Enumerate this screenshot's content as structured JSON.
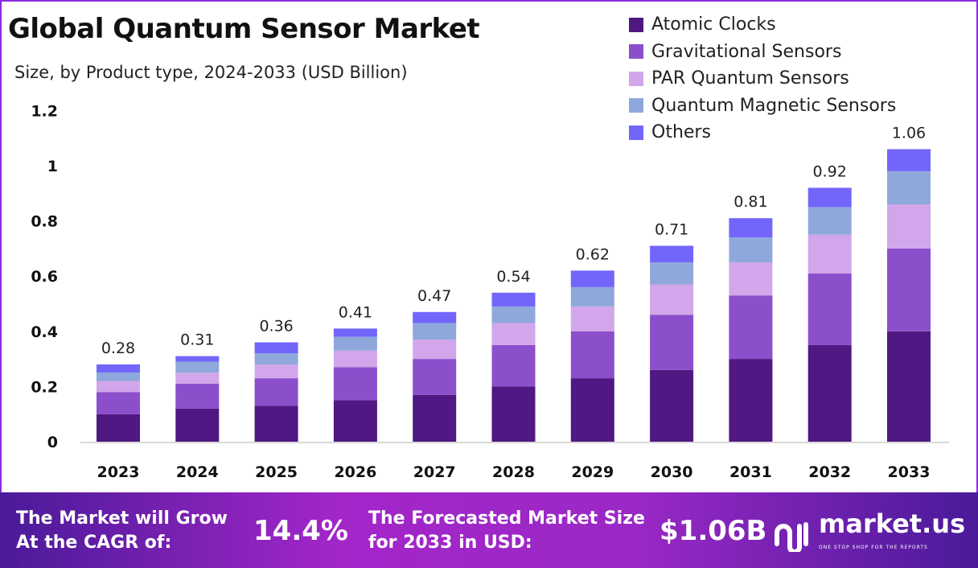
{
  "chart_data": {
    "type": "bar",
    "stacked": true,
    "title": "Global Quantum Sensor Market",
    "subtitle": "Size, by Product type, 2024-2033 (USD Billion)",
    "categories": [
      "2023",
      "2024",
      "2025",
      "2026",
      "2027",
      "2028",
      "2029",
      "2030",
      "2031",
      "2032",
      "2033"
    ],
    "totals": [
      "0.28",
      "0.31",
      "0.36",
      "0.41",
      "0.47",
      "0.54",
      "0.62",
      "0.71",
      "0.81",
      "0.92",
      "1.06"
    ],
    "series": [
      {
        "name": "Atomic Clocks",
        "color": "#4f1882",
        "values": [
          0.1,
          0.12,
          0.13,
          0.15,
          0.17,
          0.2,
          0.23,
          0.26,
          0.3,
          0.35,
          0.4
        ]
      },
      {
        "name": "Gravitational Sensors",
        "color": "#8c4fcc",
        "values": [
          0.08,
          0.09,
          0.1,
          0.12,
          0.13,
          0.15,
          0.17,
          0.2,
          0.23,
          0.26,
          0.3
        ]
      },
      {
        "name": "PAR Quantum Sensors",
        "color": "#d1a6ea",
        "values": [
          0.04,
          0.04,
          0.05,
          0.06,
          0.07,
          0.08,
          0.09,
          0.11,
          0.12,
          0.14,
          0.16
        ]
      },
      {
        "name": "Quantum Magnetic Sensors",
        "color": "#8fa8dc",
        "values": [
          0.03,
          0.04,
          0.04,
          0.05,
          0.06,
          0.06,
          0.07,
          0.08,
          0.09,
          0.1,
          0.12
        ]
      },
      {
        "name": "Others",
        "color": "#7266fa",
        "values": [
          0.03,
          0.02,
          0.04,
          0.03,
          0.04,
          0.05,
          0.06,
          0.06,
          0.07,
          0.07,
          0.08
        ]
      }
    ],
    "yticks": [
      "0",
      "0.2",
      "0.4",
      "0.6",
      "0.8",
      "1",
      "1.2"
    ],
    "ylim": [
      0,
      1.2
    ],
    "grid": false,
    "legend_position": "top-right"
  },
  "footer": {
    "cagr_label_1": "The Market will Grow",
    "cagr_label_2": "At the CAGR of:",
    "cagr_value": "14.4%",
    "forecast_label_1": "The Forecasted Market Size",
    "forecast_label_2": "for 2033 in USD:",
    "forecast_value": "$1.06B",
    "brand": "market.us",
    "tagline": "ONE STOP SHOP FOR THE REPORTS"
  }
}
